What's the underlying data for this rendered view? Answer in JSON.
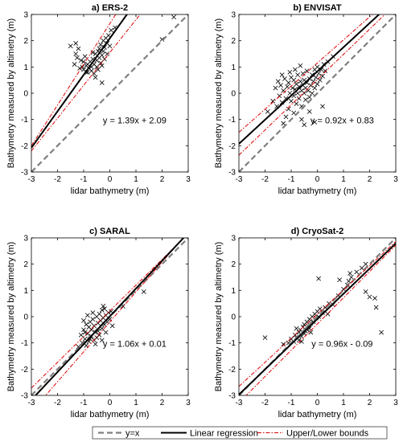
{
  "chart_data": [
    {
      "type": "scatter",
      "title": "a) ERS-2",
      "xlabel": "lidar bathymetry (m)",
      "ylabel": "Bathymetry measured by altimetry (m)",
      "xlim": [
        -3,
        3
      ],
      "ylim": [
        -3,
        3
      ],
      "ticks": [
        -3,
        -2,
        -1,
        0,
        1,
        2,
        3
      ],
      "regression": {
        "slope": 1.39,
        "intercept": 2.09
      },
      "bounds": {
        "upper": {
          "slope": 1.55,
          "intercept": 2.65
        },
        "lower": {
          "slope": 1.25,
          "intercept": 1.55
        }
      },
      "equation": "y = 1.39x + 2.09",
      "points": [
        [
          -1.5,
          1.8
        ],
        [
          -1.3,
          1.9
        ],
        [
          -1.3,
          1.5
        ],
        [
          -1.2,
          1.7
        ],
        [
          -1.25,
          1.35
        ],
        [
          -1.1,
          1.25
        ],
        [
          -1.0,
          1.2
        ],
        [
          -1.05,
          1.0
        ],
        [
          -1.0,
          0.9
        ],
        [
          -0.9,
          1.05
        ],
        [
          -0.95,
          1.4
        ],
        [
          -0.85,
          1.1
        ],
        [
          -0.8,
          0.95
        ],
        [
          -0.85,
          0.8
        ],
        [
          -0.75,
          1.2
        ],
        [
          -0.7,
          1.0
        ],
        [
          -0.7,
          0.85
        ],
        [
          -0.65,
          1.3
        ],
        [
          -0.6,
          1.1
        ],
        [
          -0.6,
          0.75
        ],
        [
          -0.55,
          1.5
        ],
        [
          -0.5,
          1.25
        ],
        [
          -0.5,
          1.0
        ],
        [
          -0.45,
          1.6
        ],
        [
          -0.45,
          0.9
        ],
        [
          -0.4,
          1.35
        ],
        [
          -0.4,
          1.7
        ],
        [
          -0.35,
          1.15
        ],
        [
          -0.35,
          1.85
        ],
        [
          -0.3,
          1.45
        ],
        [
          -0.3,
          0.4
        ],
        [
          -0.25,
          1.6
        ],
        [
          -0.25,
          2.0
        ],
        [
          -0.2,
          1.3
        ],
        [
          -0.2,
          1.75
        ],
        [
          -0.15,
          2.1
        ],
        [
          -0.1,
          1.5
        ],
        [
          -0.1,
          1.9
        ],
        [
          -0.05,
          2.2
        ],
        [
          0.0,
          1.8
        ],
        [
          0.05,
          2.4
        ],
        [
          -1.15,
          0.95
        ],
        [
          -0.9,
          0.8
        ],
        [
          -0.55,
          0.6
        ],
        [
          0.2,
          2.5
        ],
        [
          -1.35,
          1.1
        ],
        [
          -0.65,
          1.55
        ],
        [
          -0.3,
          1.05
        ],
        [
          2.0,
          2.05
        ],
        [
          2.45,
          2.9
        ]
      ]
    },
    {
      "type": "scatter",
      "title": "b) ENVISAT",
      "xlabel": "lidar bathymetry (m)",
      "ylabel": "Bathymetry measured by altimetry (m)",
      "xlim": [
        -3,
        3
      ],
      "ylim": [
        -3,
        3
      ],
      "ticks": [
        -3,
        -2,
        -1,
        0,
        1,
        2,
        3
      ],
      "regression": {
        "slope": 0.92,
        "intercept": 0.83
      },
      "bounds": {
        "upper": {
          "slope": 0.88,
          "intercept": 1.15
        },
        "lower": {
          "slope": 0.96,
          "intercept": 0.52
        }
      },
      "equation": "y = 0.92x + 0.83",
      "points": [
        [
          -1.9,
          -0.7
        ],
        [
          -1.7,
          -0.3
        ],
        [
          -1.6,
          0.2
        ],
        [
          -1.55,
          -0.5
        ],
        [
          -1.5,
          0.45
        ],
        [
          -1.45,
          -0.1
        ],
        [
          -1.4,
          0.3
        ],
        [
          -1.35,
          -0.35
        ],
        [
          -1.3,
          0.1
        ],
        [
          -1.25,
          0.55
        ],
        [
          -1.2,
          -0.2
        ],
        [
          -1.15,
          0.25
        ],
        [
          -1.1,
          -0.6
        ],
        [
          -1.1,
          0.4
        ],
        [
          -1.05,
          0.0
        ],
        [
          -1.0,
          0.6
        ],
        [
          -1.0,
          -0.3
        ],
        [
          -0.95,
          0.2
        ],
        [
          -0.9,
          -0.1
        ],
        [
          -0.9,
          0.5
        ],
        [
          -0.85,
          0.15
        ],
        [
          -0.8,
          -0.4
        ],
        [
          -0.8,
          0.35
        ],
        [
          -0.75,
          0.0
        ],
        [
          -0.75,
          0.7
        ],
        [
          -0.7,
          0.25
        ],
        [
          -0.7,
          -0.2
        ],
        [
          -0.65,
          0.45
        ],
        [
          -0.6,
          0.1
        ],
        [
          -0.6,
          -0.5
        ],
        [
          -0.55,
          0.3
        ],
        [
          -0.55,
          0.75
        ],
        [
          -0.5,
          0.0
        ],
        [
          -0.5,
          0.5
        ],
        [
          -0.45,
          0.2
        ],
        [
          -0.45,
          -0.25
        ],
        [
          -0.4,
          0.4
        ],
        [
          -0.4,
          0.85
        ],
        [
          -0.35,
          0.1
        ],
        [
          -0.3,
          0.55
        ],
        [
          -0.3,
          -0.15
        ],
        [
          -0.25,
          0.3
        ],
        [
          -0.2,
          0.7
        ],
        [
          -0.2,
          0.0
        ],
        [
          -0.15,
          0.45
        ],
        [
          -0.1,
          0.2
        ],
        [
          -0.1,
          0.9
        ],
        [
          -0.05,
          0.6
        ],
        [
          0.0,
          0.35
        ],
        [
          0.0,
          1.0
        ],
        [
          0.05,
          0.75
        ],
        [
          0.1,
          0.5
        ],
        [
          0.15,
          0.9
        ],
        [
          0.2,
          0.65
        ],
        [
          0.25,
          1.1
        ],
        [
          0.3,
          0.85
        ],
        [
          -1.2,
          -0.9
        ],
        [
          -0.9,
          -0.75
        ],
        [
          -0.6,
          -1.0
        ],
        [
          -0.3,
          -0.7
        ],
        [
          -0.1,
          -1.1
        ],
        [
          0.2,
          -0.5
        ],
        [
          -1.3,
          -1.15
        ],
        [
          -0.5,
          -1.2
        ],
        [
          0.4,
          1.2
        ],
        [
          0.6,
          1.4
        ],
        [
          -0.85,
          0.9
        ],
        [
          -1.05,
          0.8
        ],
        [
          -1.35,
          0.7
        ],
        [
          -0.65,
          1.05
        ]
      ]
    },
    {
      "type": "scatter",
      "title": "c) SARAL",
      "xlabel": "lidar bathymetry (m)",
      "ylabel": "Bathymetry measured by altimetry (m)",
      "xlim": [
        -3,
        3
      ],
      "ylim": [
        -3,
        3
      ],
      "ticks": [
        -3,
        -2,
        -1,
        0,
        1,
        2,
        3
      ],
      "regression": {
        "slope": 1.06,
        "intercept": 0.01
      },
      "bounds": {
        "upper": {
          "slope": 0.98,
          "intercept": 0.22
        },
        "lower": {
          "slope": 1.14,
          "intercept": -0.2
        }
      },
      "equation": "y = 1.06x + 0.01",
      "points": [
        [
          -1.2,
          -1.15
        ],
        [
          -1.1,
          -0.7
        ],
        [
          -1.05,
          -1.0
        ],
        [
          -1.0,
          -0.5
        ],
        [
          -0.95,
          -0.85
        ],
        [
          -0.9,
          -0.3
        ],
        [
          -0.9,
          -1.1
        ],
        [
          -0.85,
          -0.65
        ],
        [
          -0.8,
          -0.4
        ],
        [
          -0.8,
          -0.95
        ],
        [
          -0.75,
          -0.2
        ],
        [
          -0.7,
          -0.75
        ],
        [
          -0.7,
          -0.5
        ],
        [
          -0.65,
          -0.1
        ],
        [
          -0.6,
          -0.9
        ],
        [
          -0.6,
          -0.35
        ],
        [
          -0.55,
          -0.6
        ],
        [
          -0.5,
          0.0
        ],
        [
          -0.5,
          -0.8
        ],
        [
          -0.45,
          -0.25
        ],
        [
          -0.45,
          -0.55
        ],
        [
          -0.4,
          0.1
        ],
        [
          -0.4,
          -0.7
        ],
        [
          -0.35,
          -0.15
        ],
        [
          -0.3,
          -0.45
        ],
        [
          -0.3,
          0.25
        ],
        [
          -0.25,
          -0.05
        ],
        [
          -0.2,
          -0.3
        ],
        [
          -0.2,
          0.3
        ],
        [
          -0.15,
          0.05
        ],
        [
          -0.1,
          -0.2
        ],
        [
          -0.05,
          0.15
        ],
        [
          0.0,
          -0.1
        ],
        [
          0.05,
          0.2
        ],
        [
          -1.0,
          -0.15
        ],
        [
          -0.85,
          0.05
        ],
        [
          -0.65,
          0.15
        ],
        [
          -0.55,
          -1.05
        ],
        [
          -0.3,
          -0.9
        ],
        [
          -0.15,
          -0.6
        ],
        [
          0.1,
          -0.35
        ],
        [
          0.5,
          0.4
        ],
        [
          1.3,
          0.95
        ],
        [
          -0.95,
          -0.6
        ],
        [
          -0.75,
          -0.85
        ],
        [
          -0.25,
          0.4
        ]
      ]
    },
    {
      "type": "scatter",
      "title": "d) CryoSat-2",
      "xlabel": "lidar bathymetry (m)",
      "ylabel": "Bathymetry measured by altimetry (m)",
      "xlim": [
        -3,
        3
      ],
      "ylim": [
        -3,
        3
      ],
      "ticks": [
        -3,
        -2,
        -1,
        0,
        1,
        2,
        3
      ],
      "regression": {
        "slope": 0.96,
        "intercept": -0.09
      },
      "bounds": {
        "upper": {
          "slope": 0.92,
          "intercept": 0.1
        },
        "lower": {
          "slope": 1.0,
          "intercept": -0.28
        }
      },
      "equation": "y = 0.96x - 0.09",
      "points": [
        [
          -2.0,
          -0.8
        ],
        [
          -1.3,
          -1.05
        ],
        [
          -1.1,
          -1.0
        ],
        [
          -1.0,
          -0.85
        ],
        [
          -0.9,
          -0.95
        ],
        [
          -0.85,
          -0.7
        ],
        [
          -0.8,
          -0.8
        ],
        [
          -0.7,
          -0.6
        ],
        [
          -0.7,
          -0.9
        ],
        [
          -0.65,
          -0.5
        ],
        [
          -0.6,
          -0.75
        ],
        [
          -0.55,
          -0.4
        ],
        [
          -0.5,
          -0.65
        ],
        [
          -0.5,
          -0.3
        ],
        [
          -0.45,
          -0.55
        ],
        [
          -0.4,
          -0.2
        ],
        [
          -0.4,
          -0.5
        ],
        [
          -0.35,
          -0.35
        ],
        [
          -0.3,
          -0.1
        ],
        [
          -0.3,
          -0.45
        ],
        [
          -0.25,
          -0.25
        ],
        [
          -0.2,
          0.0
        ],
        [
          -0.15,
          -0.2
        ],
        [
          -0.1,
          0.1
        ],
        [
          -0.05,
          -0.05
        ],
        [
          0.0,
          0.2
        ],
        [
          0.05,
          0.0
        ],
        [
          0.1,
          0.3
        ],
        [
          0.2,
          0.15
        ],
        [
          0.3,
          0.35
        ],
        [
          0.45,
          0.5
        ],
        [
          0.6,
          0.45
        ],
        [
          0.8,
          0.8
        ],
        [
          1.0,
          1.05
        ],
        [
          1.15,
          1.2
        ],
        [
          1.3,
          1.5
        ],
        [
          1.5,
          1.7
        ],
        [
          1.7,
          1.85
        ],
        [
          1.85,
          2.0
        ],
        [
          0.05,
          1.45
        ],
        [
          0.85,
          1.4
        ],
        [
          1.2,
          1.35
        ],
        [
          1.25,
          1.65
        ],
        [
          1.85,
          0.95
        ],
        [
          2.0,
          0.75
        ],
        [
          2.2,
          0.7
        ],
        [
          2.25,
          0.35
        ],
        [
          2.45,
          -0.6
        ],
        [
          -0.8,
          -0.45
        ],
        [
          -0.6,
          -0.95
        ],
        [
          -0.25,
          -0.6
        ],
        [
          0.4,
          0.1
        ]
      ]
    }
  ],
  "legend": {
    "items": [
      {
        "label": "y=x",
        "style": "identity",
        "color": "#7f7f7f"
      },
      {
        "label": "Linear regression",
        "style": "regression",
        "color": "#000000"
      },
      {
        "label": "Upper/Lower bounds",
        "style": "bounds",
        "color": "#e00000"
      }
    ]
  },
  "colors": {
    "points": "#000000",
    "identity": "#7f7f7f",
    "regression": "#000000",
    "bounds": "#e00000"
  }
}
